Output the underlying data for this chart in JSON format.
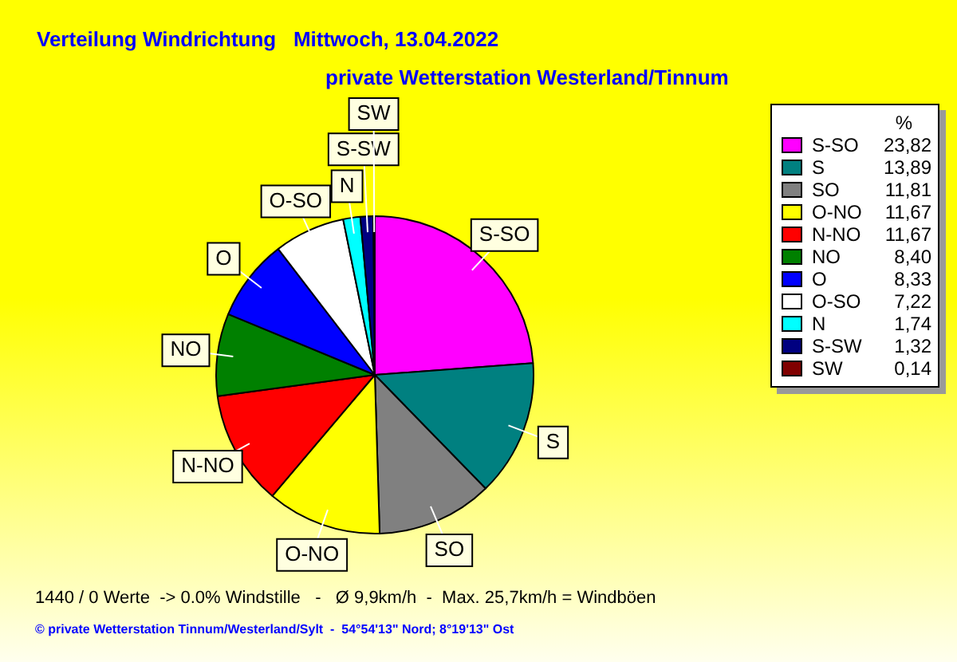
{
  "chart_data": {
    "type": "pie",
    "title": "Verteilung Windrichtung   Mittwoch, 13.04.2022",
    "subtitle": "private Wetterstation Westerland/Tinnum",
    "legend_title": "%",
    "categories": [
      "S-SO",
      "S",
      "SO",
      "O-NO",
      "N-NO",
      "NO",
      "O",
      "O-SO",
      "N",
      "S-SW",
      "SW"
    ],
    "values": [
      23.82,
      13.89,
      11.81,
      11.67,
      11.67,
      8.4,
      8.33,
      7.22,
      1.74,
      1.32,
      0.14
    ],
    "value_labels": [
      "23,82",
      "13,89",
      "11,81",
      "11,67",
      "11,67",
      "8,40",
      "8,33",
      "7,22",
      "1,74",
      "1,32",
      "0,14"
    ],
    "colors": [
      "#ff00ff",
      "#008080",
      "#808080",
      "#ffff00",
      "#ff0000",
      "#008000",
      "#0000ff",
      "#ffffff",
      "#00ffff",
      "#000080",
      "#800000"
    ],
    "legend": "right",
    "annotations": [
      "1440 / 0 Werte  -> 0.0% Windstille   -   Ø 9,9km/h  -  Max. 25,7km/h = Windböen",
      "© private Wetterstation Tinnum/Westerland/Sylt  -  54°54'13\" Nord; 8°19'13\" Ost"
    ]
  }
}
